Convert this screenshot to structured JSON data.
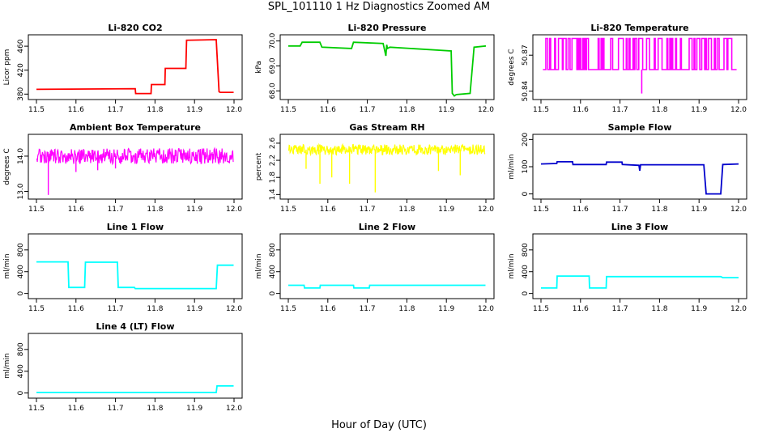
{
  "figure": {
    "title": "SPL_101110  1 Hz Diagnostics Zoomed AM",
    "xlabel": "Hour of Day (UTC)"
  },
  "chart_data": [
    {
      "type": "line",
      "title": "Li-820 CO2",
      "ylabel": "Licor ppm",
      "color": "#ff0000",
      "xlim": [
        11.5,
        12.0
      ],
      "x_ticks": [
        "11.5",
        "11.6",
        "11.7",
        "11.8",
        "11.9",
        "12.0"
      ],
      "ylim": [
        375,
        475
      ],
      "y_ticks": [
        {
          "value": 380,
          "label": "380"
        },
        {
          "value": 420,
          "label": "420"
        },
        {
          "value": 460,
          "label": "460"
        }
      ],
      "series": [
        {
          "x": [
            11.5,
            11.75,
            11.751,
            11.79,
            11.791,
            11.825,
            11.826,
            11.878,
            11.88,
            11.955,
            11.962,
            11.965,
            11.999
          ],
          "y": [
            388,
            389,
            381,
            381,
            396,
            396,
            423,
            423,
            470,
            471,
            384,
            383,
            383
          ]
        }
      ]
    },
    {
      "type": "line",
      "title": "Li-820 Pressure",
      "ylabel": "kPa",
      "color": "#00cc00",
      "xlim": [
        11.5,
        12.0
      ],
      "x_ticks": [
        "11.5",
        "11.6",
        "11.7",
        "11.8",
        "11.9",
        "12.0"
      ],
      "ylim": [
        67.75,
        70.15
      ],
      "y_ticks": [
        {
          "value": 68.0,
          "label": "68.0"
        },
        {
          "value": 69.0,
          "label": "69.0"
        },
        {
          "value": 70.0,
          "label": "70.0"
        }
      ],
      "series": [
        {
          "x": [
            11.5,
            11.53,
            11.535,
            11.58,
            11.585,
            11.66,
            11.665,
            11.74,
            11.747,
            11.749,
            11.751,
            11.757,
            11.912,
            11.915,
            11.92,
            11.925,
            11.96,
            11.97,
            12.0
          ],
          "y": [
            69.8,
            69.8,
            69.95,
            69.95,
            69.75,
            69.7,
            69.95,
            69.9,
            69.4,
            69.85,
            69.7,
            69.75,
            69.6,
            67.9,
            67.8,
            67.85,
            67.9,
            69.75,
            69.8
          ]
        }
      ]
    },
    {
      "type": "line",
      "title": "Li-820 Temperature",
      "ylabel": "degrees C",
      "color": "#ff00ff",
      "xlim": [
        11.5,
        12.0
      ],
      "x_ticks": [
        "11.5",
        "11.6",
        "11.7",
        "11.8",
        "11.9",
        "12.0"
      ],
      "ylim": [
        50.835,
        50.885
      ],
      "y_ticks": [
        {
          "value": 50.84,
          "label": "50.84"
        },
        {
          "value": 50.87,
          "label": "50.87"
        }
      ],
      "levels": [
        50.858,
        50.884
      ],
      "outlier": {
        "x": 11.755,
        "y": 50.838
      }
    },
    {
      "type": "line",
      "title": "Ambient Box Temperature",
      "ylabel": "degrees C",
      "color": "#ff00ff",
      "xlim": [
        11.5,
        12.0
      ],
      "x_ticks": [
        "11.5",
        "11.6",
        "11.7",
        "11.8",
        "11.9",
        "12.0"
      ],
      "ylim": [
        12.85,
        14.55
      ],
      "y_ticks": [
        {
          "value": 13.0,
          "label": "13.0"
        },
        {
          "value": 14.0,
          "label": "14.0"
        }
      ],
      "center": 14.0,
      "spread": 0.22,
      "spikes": [
        {
          "x": 11.53,
          "y": 12.9
        },
        {
          "x": 11.6,
          "y": 13.55
        },
        {
          "x": 11.655,
          "y": 13.6
        },
        {
          "x": 11.7,
          "y": 13.65
        }
      ]
    },
    {
      "type": "line",
      "title": "Gas Stream RH",
      "ylabel": "percent",
      "color": "#ffff00",
      "xlim": [
        11.5,
        12.0
      ],
      "x_ticks": [
        "11.5",
        "11.6",
        "11.7",
        "11.8",
        "11.9",
        "12.0"
      ],
      "ylim": [
        1.35,
        2.75
      ],
      "y_ticks": [
        {
          "value": 1.4,
          "label": "1.4"
        },
        {
          "value": 1.8,
          "label": "1.8"
        },
        {
          "value": 2.2,
          "label": "2.2"
        },
        {
          "value": 2.6,
          "label": "2.6"
        }
      ],
      "center": 2.45,
      "spread": 0.12,
      "spikes": [
        {
          "x": 11.58,
          "y": 1.65
        },
        {
          "x": 11.61,
          "y": 1.8
        },
        {
          "x": 11.655,
          "y": 1.65
        },
        {
          "x": 11.72,
          "y": 1.45
        },
        {
          "x": 11.88,
          "y": 1.95
        },
        {
          "x": 11.935,
          "y": 1.85
        },
        {
          "x": 11.545,
          "y": 2.0
        }
      ]
    },
    {
      "type": "line",
      "title": "Sample Flow",
      "ylabel": "ml/min",
      "color": "#0000cc",
      "xlim": [
        11.5,
        12.0
      ],
      "x_ticks": [
        "11.5",
        "11.6",
        "11.7",
        "11.8",
        "11.9",
        "12.0"
      ],
      "ylim": [
        -10,
        210
      ],
      "y_ticks": [
        {
          "value": 0,
          "label": "0"
        },
        {
          "value": 100,
          "label": "100"
        },
        {
          "value": 200,
          "label": "200"
        }
      ],
      "series": [
        {
          "x": [
            11.5,
            11.54,
            11.541,
            11.58,
            11.581,
            11.665,
            11.666,
            11.705,
            11.706,
            11.748,
            11.75,
            11.752,
            11.912,
            11.918,
            11.955,
            11.96,
            12.0
          ],
          "y": [
            110,
            112,
            118,
            118,
            108,
            108,
            117,
            117,
            108,
            105,
            85,
            107,
            107,
            0,
            0,
            108,
            110
          ]
        }
      ]
    },
    {
      "type": "line",
      "title": "Line 1 Flow",
      "ylabel": "ml/min",
      "color": "#00ffff",
      "xlim": [
        11.5,
        12.0
      ],
      "x_ticks": [
        "11.5",
        "11.6",
        "11.7",
        "11.8",
        "11.9",
        "12.0"
      ],
      "ylim": [
        -50,
        1050
      ],
      "y_ticks": [
        {
          "value": 0,
          "label": "0"
        },
        {
          "value": 400,
          "label": "400"
        },
        {
          "value": 800,
          "label": "800"
        }
      ],
      "series": [
        {
          "x": [
            11.5,
            11.58,
            11.582,
            11.622,
            11.624,
            11.705,
            11.707,
            11.748,
            11.75,
            11.955,
            11.958,
            11.999
          ],
          "y": [
            580,
            580,
            110,
            110,
            575,
            575,
            110,
            110,
            90,
            90,
            520,
            520
          ]
        }
      ]
    },
    {
      "type": "line",
      "title": "Line 2 Flow",
      "ylabel": "ml/min",
      "color": "#00ffff",
      "xlim": [
        11.5,
        12.0
      ],
      "x_ticks": [
        "11.5",
        "11.6",
        "11.7",
        "11.8",
        "11.9",
        "12.0"
      ],
      "ylim": [
        -50,
        1050
      ],
      "y_ticks": [
        {
          "value": 0,
          "label": "0"
        },
        {
          "value": 400,
          "label": "400"
        },
        {
          "value": 800,
          "label": "800"
        }
      ],
      "series": [
        {
          "x": [
            11.5,
            11.54,
            11.541,
            11.58,
            11.581,
            11.665,
            11.666,
            11.705,
            11.706,
            11.999
          ],
          "y": [
            150,
            150,
            100,
            100,
            150,
            150,
            100,
            100,
            150,
            150
          ]
        }
      ]
    },
    {
      "type": "line",
      "title": "Line 3 Flow",
      "ylabel": "ml/min",
      "color": "#00ffff",
      "xlim": [
        11.5,
        12.0
      ],
      "x_ticks": [
        "11.5",
        "11.6",
        "11.7",
        "11.8",
        "11.9",
        "12.0"
      ],
      "ylim": [
        -50,
        1050
      ],
      "y_ticks": [
        {
          "value": 0,
          "label": "0"
        },
        {
          "value": 400,
          "label": "400"
        },
        {
          "value": 800,
          "label": "800"
        }
      ],
      "series": [
        {
          "x": [
            11.5,
            11.54,
            11.541,
            11.622,
            11.623,
            11.665,
            11.666,
            11.955,
            11.96,
            12.0
          ],
          "y": [
            100,
            100,
            320,
            320,
            100,
            100,
            310,
            310,
            290,
            290
          ]
        }
      ]
    },
    {
      "type": "line",
      "title": "Line 4 (LT) Flow",
      "ylabel": "ml/min",
      "color": "#00ffff",
      "xlim": [
        11.5,
        12.0
      ],
      "x_ticks": [
        "11.5",
        "11.6",
        "11.7",
        "11.8",
        "11.9",
        "12.0"
      ],
      "ylim": [
        -50,
        1050
      ],
      "y_ticks": [
        {
          "value": 0,
          "label": "0"
        },
        {
          "value": 400,
          "label": "400"
        },
        {
          "value": 800,
          "label": "800"
        }
      ],
      "series": [
        {
          "x": [
            11.5,
            11.955,
            11.957,
            11.999
          ],
          "y": [
            10,
            10,
            130,
            130
          ]
        }
      ]
    }
  ]
}
